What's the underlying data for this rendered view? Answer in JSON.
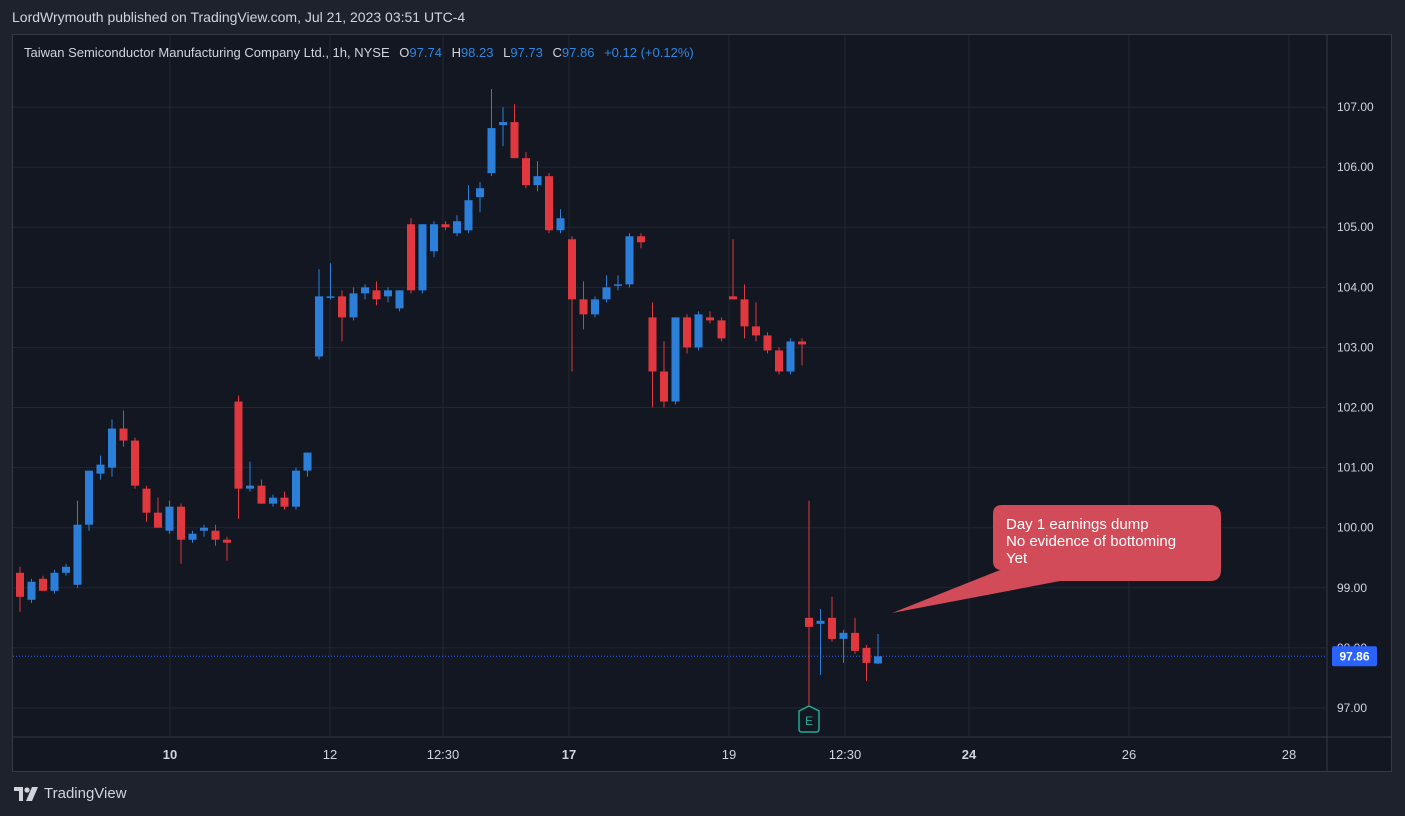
{
  "header": {
    "publisher": "LordWrymouth published on TradingView.com, Jul 21, 2023 03:51 UTC-4"
  },
  "legend": {
    "symbol": "Taiwan Semiconductor Manufacturing Company Ltd., 1h, NYSE",
    "o_label": "O",
    "o_value": "97.74",
    "h_label": "H",
    "h_value": "98.23",
    "l_label": "L",
    "l_value": "97.73",
    "c_label": "C",
    "c_value": "97.86",
    "change": "+0.12 (+0.12%)"
  },
  "annotation": {
    "text": "Day 1 earnings dump\nNo evidence of bottoming\nYet",
    "color": "#d14b58"
  },
  "earnings_marker": {
    "label": "E"
  },
  "footer": {
    "brand": "TradingView"
  },
  "colors": {
    "up": "#2b7fd9",
    "down": "#e0383e",
    "grid": "#232733",
    "text": "#d1d4dc",
    "price_tag": "#2962ff"
  },
  "chart_data": {
    "type": "candlestick",
    "ylim": [
      96.7,
      107.75
    ],
    "y_ticks": [
      97.0,
      98.0,
      99.0,
      100.0,
      101.0,
      102.0,
      103.0,
      104.0,
      105.0,
      106.0,
      107.0
    ],
    "y_tick_labels": [
      "97.00",
      "98.00",
      "99.00",
      "100.00",
      "101.00",
      "102.00",
      "103.00",
      "104.00",
      "105.00",
      "106.00",
      "107.00"
    ],
    "x_labels": [
      "10",
      "12",
      "12:30",
      "17",
      "19",
      "12:30",
      "24",
      "26",
      "28"
    ],
    "x_label_bold": [
      true,
      false,
      false,
      true,
      false,
      false,
      true,
      false,
      false
    ],
    "last_price": 97.86,
    "last_price_label": "97.86",
    "candles": [
      {
        "o": 99.25,
        "h": 99.35,
        "l": 98.6,
        "c": 98.85
      },
      {
        "o": 98.8,
        "h": 99.15,
        "l": 98.75,
        "c": 99.1
      },
      {
        "o": 99.15,
        "h": 99.2,
        "l": 98.95,
        "c": 98.95
      },
      {
        "o": 98.95,
        "h": 99.3,
        "l": 98.9,
        "c": 99.25
      },
      {
        "o": 99.25,
        "h": 99.4,
        "l": 99.2,
        "c": 99.35
      },
      {
        "o": 99.05,
        "h": 100.45,
        "l": 99.0,
        "c": 100.05
      },
      {
        "o": 100.05,
        "h": 100.95,
        "l": 99.95,
        "c": 100.95
      },
      {
        "o": 100.9,
        "h": 101.2,
        "l": 100.8,
        "c": 101.05
      },
      {
        "o": 101.0,
        "h": 101.8,
        "l": 100.85,
        "c": 101.65
      },
      {
        "o": 101.65,
        "h": 101.95,
        "l": 101.35,
        "c": 101.45
      },
      {
        "o": 101.45,
        "h": 101.5,
        "l": 100.65,
        "c": 100.7
      },
      {
        "o": 100.65,
        "h": 100.7,
        "l": 100.1,
        "c": 100.25
      },
      {
        "o": 100.25,
        "h": 100.5,
        "l": 100.05,
        "c": 100.0
      },
      {
        "o": 99.95,
        "h": 100.45,
        "l": 99.9,
        "c": 100.35
      },
      {
        "o": 100.35,
        "h": 100.4,
        "l": 99.4,
        "c": 99.8
      },
      {
        "o": 99.8,
        "h": 99.95,
        "l": 99.75,
        "c": 99.9
      },
      {
        "o": 99.95,
        "h": 100.05,
        "l": 99.85,
        "c": 100.0
      },
      {
        "o": 99.95,
        "h": 100.05,
        "l": 99.7,
        "c": 99.8
      },
      {
        "o": 99.8,
        "h": 99.85,
        "l": 99.45,
        "c": 99.75
      },
      {
        "o": 102.1,
        "h": 102.2,
        "l": 100.15,
        "c": 100.65
      },
      {
        "o": 100.65,
        "h": 101.1,
        "l": 100.6,
        "c": 100.7
      },
      {
        "o": 100.7,
        "h": 100.8,
        "l": 100.4,
        "c": 100.4
      },
      {
        "o": 100.4,
        "h": 100.55,
        "l": 100.35,
        "c": 100.5
      },
      {
        "o": 100.5,
        "h": 100.6,
        "l": 100.3,
        "c": 100.35
      },
      {
        "o": 100.35,
        "h": 101.0,
        "l": 100.3,
        "c": 100.95
      },
      {
        "o": 100.95,
        "h": 101.25,
        "l": 100.85,
        "c": 101.25
      },
      {
        "o": 102.85,
        "h": 104.3,
        "l": 102.8,
        "c": 103.85
      },
      {
        "o": 103.85,
        "h": 104.4,
        "l": 103.8,
        "c": 103.85
      },
      {
        "o": 103.85,
        "h": 103.95,
        "l": 103.1,
        "c": 103.5
      },
      {
        "o": 103.5,
        "h": 104.0,
        "l": 103.45,
        "c": 103.9
      },
      {
        "o": 103.9,
        "h": 104.05,
        "l": 103.8,
        "c": 104.0
      },
      {
        "o": 103.95,
        "h": 104.1,
        "l": 103.7,
        "c": 103.8
      },
      {
        "o": 103.85,
        "h": 104.0,
        "l": 103.75,
        "c": 103.95
      },
      {
        "o": 103.65,
        "h": 103.95,
        "l": 103.6,
        "c": 103.95
      },
      {
        "o": 105.05,
        "h": 105.15,
        "l": 103.9,
        "c": 103.95
      },
      {
        "o": 103.95,
        "h": 105.05,
        "l": 103.9,
        "c": 105.05
      },
      {
        "o": 104.6,
        "h": 105.1,
        "l": 104.5,
        "c": 105.05
      },
      {
        "o": 105.05,
        "h": 105.1,
        "l": 104.95,
        "c": 105.0
      },
      {
        "o": 104.9,
        "h": 105.2,
        "l": 104.85,
        "c": 105.1
      },
      {
        "o": 104.95,
        "h": 105.7,
        "l": 104.9,
        "c": 105.45
      },
      {
        "o": 105.5,
        "h": 105.75,
        "l": 105.25,
        "c": 105.65
      },
      {
        "o": 105.9,
        "h": 107.3,
        "l": 105.85,
        "c": 106.65
      },
      {
        "o": 106.7,
        "h": 107.0,
        "l": 106.35,
        "c": 106.75
      },
      {
        "o": 106.75,
        "h": 107.05,
        "l": 106.15,
        "c": 106.15
      },
      {
        "o": 106.15,
        "h": 106.25,
        "l": 105.65,
        "c": 105.7
      },
      {
        "o": 105.7,
        "h": 106.1,
        "l": 105.6,
        "c": 105.85
      },
      {
        "o": 105.85,
        "h": 105.9,
        "l": 104.9,
        "c": 104.95
      },
      {
        "o": 104.95,
        "h": 105.3,
        "l": 104.9,
        "c": 105.15
      },
      {
        "o": 104.8,
        "h": 104.85,
        "l": 102.6,
        "c": 103.8
      },
      {
        "o": 103.8,
        "h": 104.1,
        "l": 103.3,
        "c": 103.55
      },
      {
        "o": 103.55,
        "h": 103.85,
        "l": 103.5,
        "c": 103.8
      },
      {
        "o": 103.8,
        "h": 104.2,
        "l": 103.75,
        "c": 104.0
      },
      {
        "o": 104.05,
        "h": 104.2,
        "l": 103.95,
        "c": 104.05
      },
      {
        "o": 104.05,
        "h": 104.9,
        "l": 104.0,
        "c": 104.85
      },
      {
        "o": 104.85,
        "h": 104.9,
        "l": 104.65,
        "c": 104.75
      },
      {
        "o": 103.5,
        "h": 103.75,
        "l": 102.0,
        "c": 102.6
      },
      {
        "o": 102.6,
        "h": 103.1,
        "l": 102.0,
        "c": 102.1
      },
      {
        "o": 102.1,
        "h": 103.5,
        "l": 102.05,
        "c": 103.5
      },
      {
        "o": 103.5,
        "h": 103.55,
        "l": 102.9,
        "c": 103.0
      },
      {
        "o": 103.0,
        "h": 103.6,
        "l": 102.95,
        "c": 103.55
      },
      {
        "o": 103.5,
        "h": 103.6,
        "l": 103.4,
        "c": 103.45
      },
      {
        "o": 103.45,
        "h": 103.5,
        "l": 103.1,
        "c": 103.15
      },
      {
        "o": 103.85,
        "h": 104.8,
        "l": 103.8,
        "c": 103.8
      },
      {
        "o": 103.8,
        "h": 104.05,
        "l": 103.15,
        "c": 103.35
      },
      {
        "o": 103.35,
        "h": 103.75,
        "l": 103.1,
        "c": 103.2
      },
      {
        "o": 103.2,
        "h": 103.25,
        "l": 102.9,
        "c": 102.95
      },
      {
        "o": 102.95,
        "h": 103.0,
        "l": 102.55,
        "c": 102.6
      },
      {
        "o": 102.6,
        "h": 103.15,
        "l": 102.55,
        "c": 103.1
      },
      {
        "o": 103.1,
        "h": 103.15,
        "l": 102.7,
        "c": 103.05
      },
      {
        "o": 98.5,
        "h": 100.45,
        "l": 97.05,
        "c": 98.35
      },
      {
        "o": 98.4,
        "h": 98.65,
        "l": 97.55,
        "c": 98.45
      },
      {
        "o": 98.5,
        "h": 98.85,
        "l": 98.1,
        "c": 98.15
      },
      {
        "o": 98.15,
        "h": 98.3,
        "l": 97.75,
        "c": 98.25
      },
      {
        "o": 98.25,
        "h": 98.5,
        "l": 97.9,
        "c": 97.95
      },
      {
        "o": 98.0,
        "h": 98.05,
        "l": 97.45,
        "c": 97.75
      },
      {
        "o": 97.74,
        "h": 98.23,
        "l": 97.73,
        "c": 97.86
      }
    ]
  }
}
